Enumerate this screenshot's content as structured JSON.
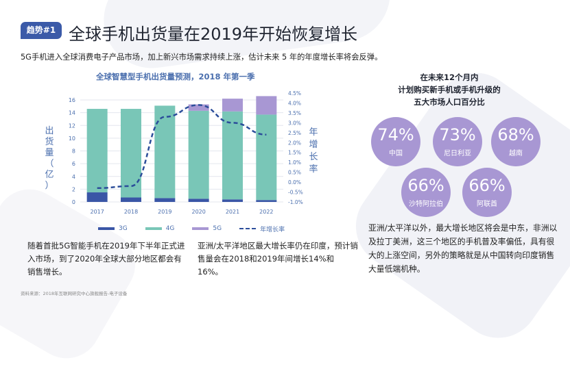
{
  "badge": "趋势#1",
  "title": "全球手机出货量在2019年开始恢复增长",
  "subtitle": "5G手机进入全球消费电子产品市场，加上新兴市场需求持续上涨，估计未来 5 年的年度增长率将会反弹。",
  "chart_data": {
    "type": "bar",
    "title": "全球智慧型手机出货量预测，2018 年第一季",
    "ylabel": "出货量（亿）",
    "y2label": "年增长率",
    "categories": [
      "2017",
      "2018",
      "2019",
      "2020",
      "2021",
      "2022"
    ],
    "series": [
      {
        "name": "3G",
        "values": [
          1.5,
          0.7,
          0.6,
          0.5,
          0.4,
          0.3
        ],
        "color": "#3a56a6"
      },
      {
        "name": "4G",
        "values": [
          13.1,
          13.9,
          14.5,
          13.8,
          13.8,
          13.4
        ],
        "color": "#79c6b7"
      },
      {
        "name": "5G",
        "values": [
          0,
          0,
          0,
          1.0,
          2.0,
          2.9
        ],
        "color": "#a897d3"
      }
    ],
    "line": {
      "name": "年增长率",
      "values": [
        -0.3,
        -0.2,
        3.3,
        3.9,
        3.0,
        2.4
      ],
      "color": "#2b4d9a"
    },
    "ylim": [
      0,
      18
    ],
    "yticks": [
      "0",
      "2",
      "4",
      "6",
      "8",
      "10",
      "12",
      "14",
      "16"
    ],
    "y2lim": [
      -1.0,
      4.5
    ],
    "y2ticks": [
      "-1.0%",
      "-0.5%",
      "0.0%",
      "0.5%",
      "1.0%",
      "1.5%",
      "2.0%",
      "2.5%",
      "3.0%",
      "3.5%",
      "4.0%",
      "4.5%"
    ],
    "legend": "bottom"
  },
  "ylabel_left": "出货量（亿）",
  "ylabel_right": "年增长率",
  "note_left": "随着首批5G智能手机在2019年下半年正式进入市场，到了2020年全球大部分地区都会有销售增长。",
  "note_mid": "亚洲/太平洋地区最大增长率仍在印度，预计销售量会在2018和2019年间增长14%和16%。",
  "source": "资料来源：2018年互联网研究中心旗舰报告-电子设备",
  "right_heading": [
    "在未来12个月内",
    "计划购买新手机或手机升级的",
    "五大市场人口百分比"
  ],
  "markets": [
    {
      "pct": "74%",
      "country": "中国"
    },
    {
      "pct": "73%",
      "country": "尼日利亚"
    },
    {
      "pct": "68%",
      "country": "越南"
    },
    {
      "pct": "66%",
      "country": "沙特阿拉伯"
    },
    {
      "pct": "66%",
      "country": "阿联酋"
    }
  ],
  "right_text": "亚洲/太平洋以外，最大增长地区将会是中东，非洲以及拉丁美洲，这三个地区的手机普及率偏低，具有很大的上涨空间，另外的策略就是从中国转向印度销售大量低端机种。"
}
